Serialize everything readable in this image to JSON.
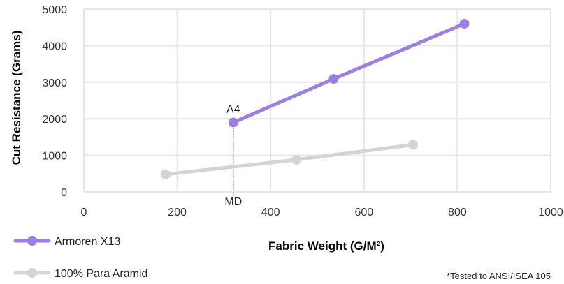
{
  "chart_data": {
    "type": "line",
    "xlabel": "Fabric Weight (G/M²)",
    "ylabel": "Cut Resistance (Grams)",
    "xlim": [
      0,
      1000
    ],
    "ylim": [
      0,
      5000
    ],
    "x_ticks": [
      "0",
      "200",
      "400",
      "600",
      "800",
      "1000"
    ],
    "y_ticks": [
      "0",
      "1000",
      "2000",
      "3000",
      "4000",
      "5000"
    ],
    "grid": true,
    "legend_position": "bottom-left",
    "series": [
      {
        "name": "Armoren X13",
        "color": "#9b7fe6",
        "points": [
          {
            "x": 320,
            "y": 1900
          },
          {
            "x": 535,
            "y": 3090
          },
          {
            "x": 815,
            "y": 4600
          }
        ]
      },
      {
        "name": "100% Para Aramid",
        "color": "#d4d4d4",
        "points": [
          {
            "x": 175,
            "y": 480
          },
          {
            "x": 455,
            "y": 880
          },
          {
            "x": 705,
            "y": 1290
          }
        ]
      }
    ],
    "annotations": [
      {
        "text": "A4",
        "x": 320,
        "y": 1900,
        "anchor": "above-point"
      },
      {
        "text": "MD",
        "x": 320,
        "y": 0,
        "anchor": "below-axis",
        "dashed_line": true
      }
    ],
    "footnote": "*Tested to ANSI/ISEA 105"
  }
}
